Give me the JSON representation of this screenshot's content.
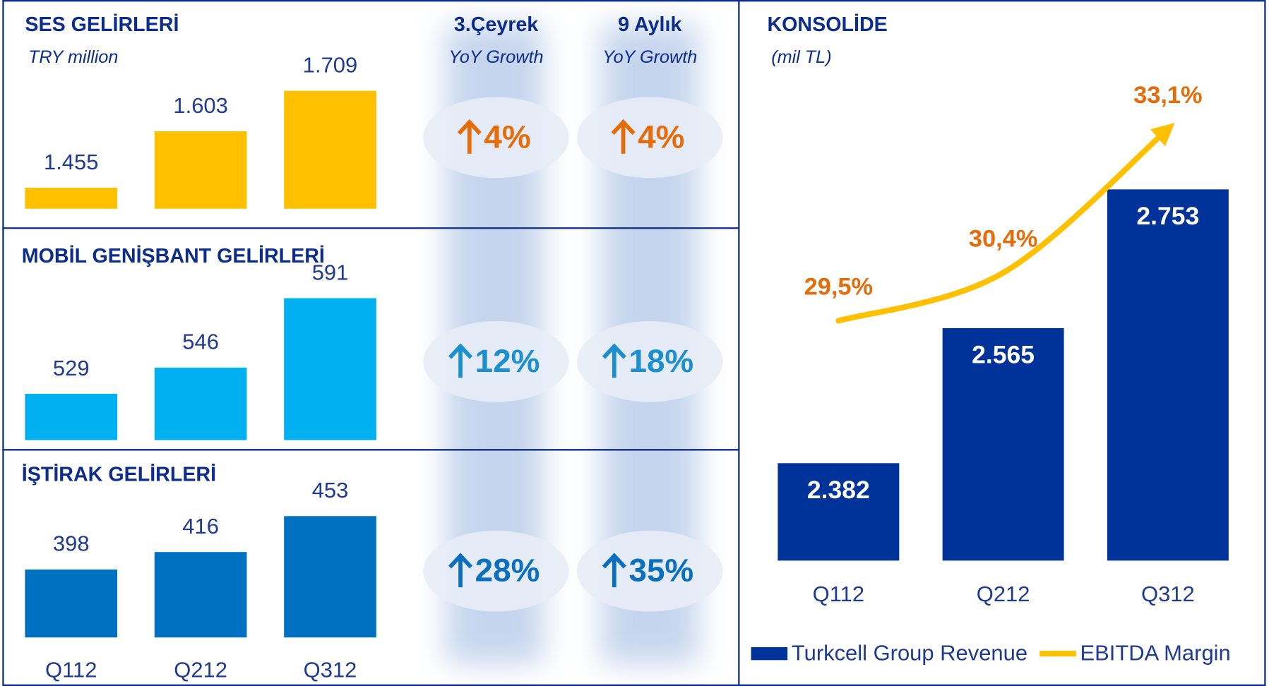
{
  "growth_columns": [
    {
      "title": "3.Çeyrek",
      "subtitle": "YoY Growth"
    },
    {
      "title": "9 Aylık",
      "subtitle": "YoY Growth"
    }
  ],
  "chart_data": [
    {
      "type": "bar",
      "title": "SES GELİRLERİ",
      "subtitle": "TRY million",
      "values": [
        1455,
        1603,
        1709
      ],
      "value_labels": [
        "1.455",
        "1.603",
        "1.709"
      ],
      "color": "#ffc000",
      "ylim": [
        1400,
        1735
      ],
      "growth_values": [
        4,
        4
      ],
      "growth_labels": [
        "4%",
        "4%"
      ],
      "growth_color": "#e46c0a"
    },
    {
      "type": "bar",
      "title": "MOBİL GENİŞBANT GELİRLERİ",
      "values": [
        529,
        546,
        591
      ],
      "color": "#00b0f0",
      "ylim": [
        499,
        606
      ],
      "growth_values": [
        12,
        18
      ],
      "growth_labels": [
        "12%",
        "18%"
      ],
      "growth_color": "#1b8fd0"
    },
    {
      "type": "bar",
      "title": "İŞTİRAK GELİRLERİ",
      "categories": [
        "Q112",
        "Q212",
        "Q312"
      ],
      "values": [
        398,
        416,
        453
      ],
      "color": "#0070c0",
      "ylim": [
        328,
        468
      ],
      "growth_values": [
        28,
        35
      ],
      "growth_labels": [
        "28%",
        "35%"
      ],
      "growth_color": "#0b6fc0"
    },
    {
      "type": "combo",
      "title": "KONSOLİDE",
      "subtitle": "(mil TL)",
      "categories": [
        "Q112",
        "Q212",
        "Q312"
      ],
      "ylim": [
        2250,
        2900
      ],
      "y2lim": [
        25,
        34
      ],
      "legend": "bottom",
      "series": [
        {
          "name": "Turkcell Group Revenue",
          "type": "bar",
          "color": "#003399",
          "values": [
            2382,
            2565,
            2753
          ],
          "value_labels": [
            "2.382",
            "2.565",
            "2.753"
          ]
        },
        {
          "name": "EBITDA Margin",
          "type": "line",
          "axis": "y2",
          "color": "#ffc000",
          "label_color": "#e46c0a",
          "values": [
            29.5,
            30.4,
            33.1
          ],
          "value_labels": [
            "29,5%",
            "30,4%",
            "33,1%"
          ]
        }
      ]
    }
  ]
}
